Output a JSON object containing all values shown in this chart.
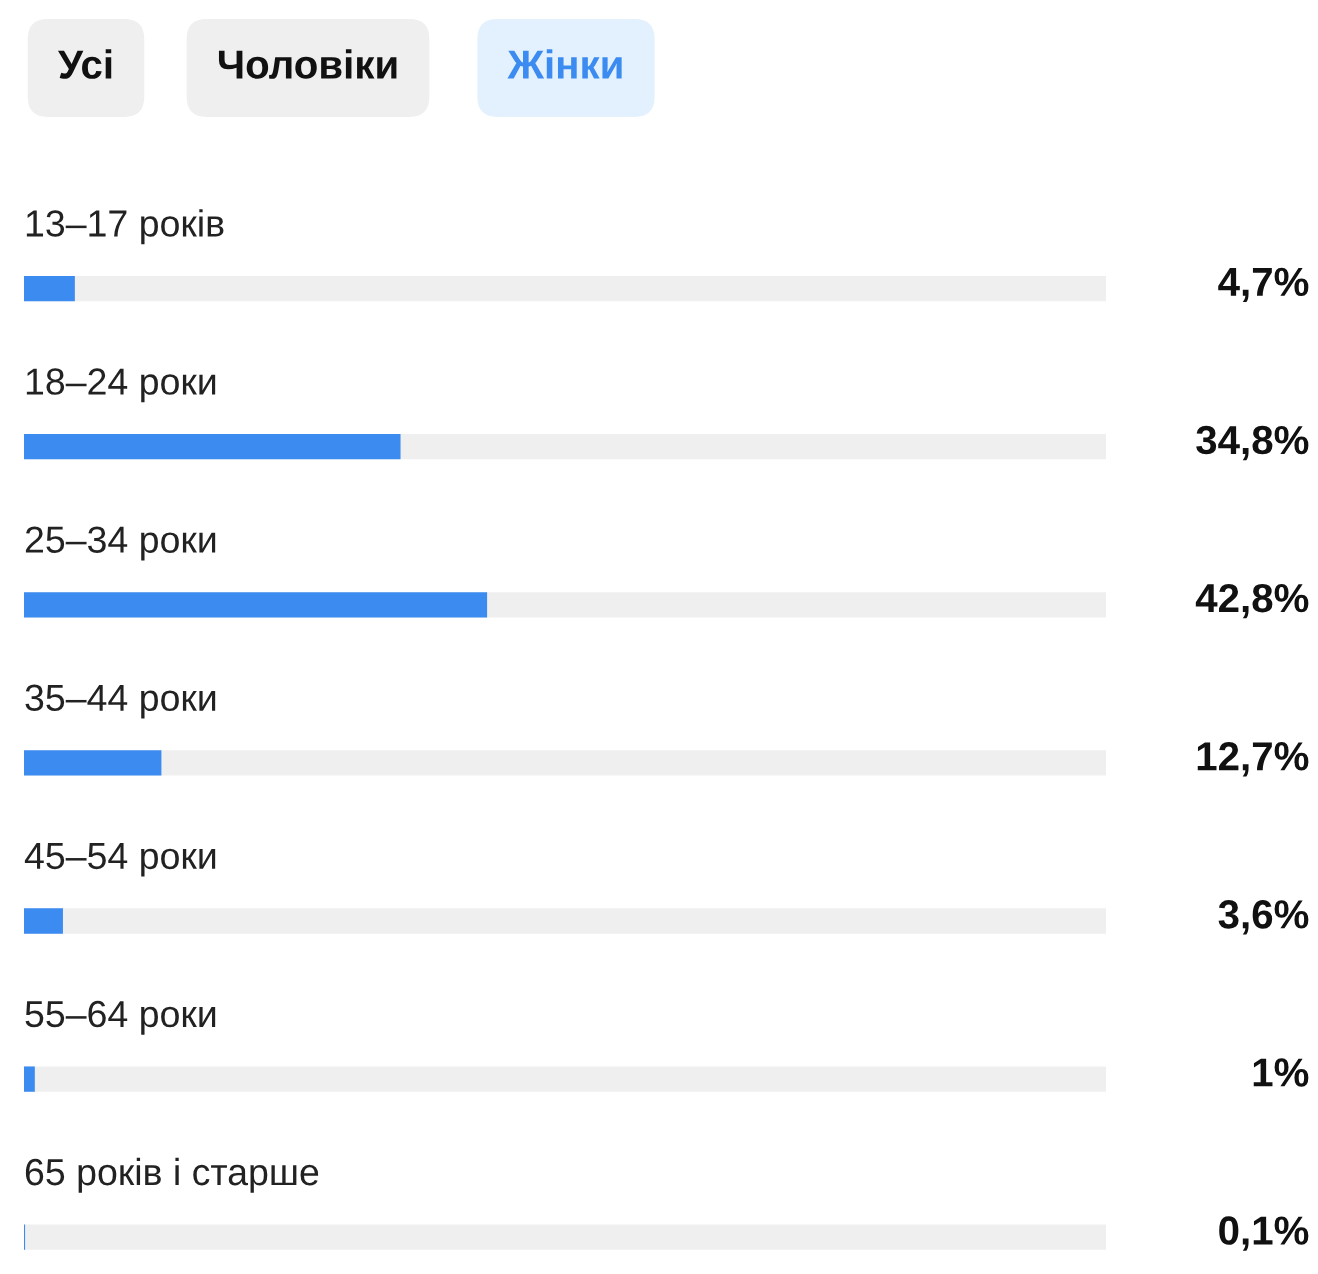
{
  "chart_data": {
    "type": "bar",
    "orientation": "horizontal",
    "annotations": [
      "Усі",
      "Чоловіки",
      "Жінки"
    ],
    "categories": [
      "13–17 років",
      "18–24 роки",
      "25–34 роки",
      "35–44 роки",
      "45–54 роки",
      "55–64 роки",
      "65 років і старше"
    ],
    "values": [
      4.7,
      34.8,
      42.8,
      12.7,
      3.6,
      1,
      0.1
    ],
    "value_labels": [
      "4,7%",
      "34,8%",
      "42,8%",
      "12,7%",
      "3,6%",
      "1%",
      "0,1%"
    ],
    "color": "#3b8bf0",
    "xlim": [
      0,
      100
    ],
    "tick_labels": "y"
  }
}
